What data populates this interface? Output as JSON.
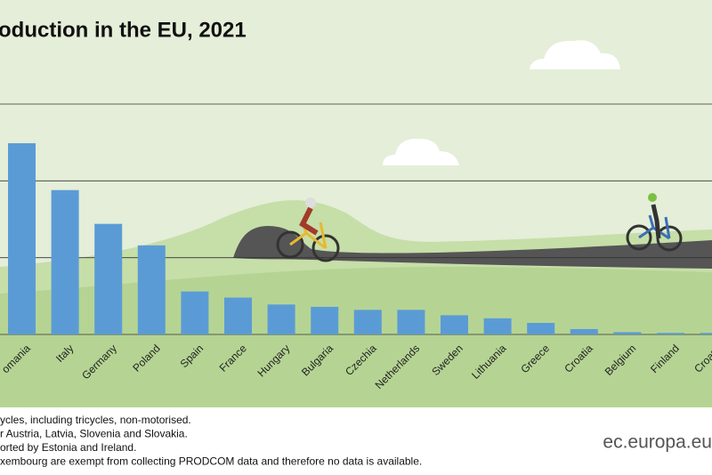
{
  "chart_data": {
    "type": "bar",
    "title": "oduction in the EU, 2021",
    "categories": [
      "omania",
      "Italy",
      "Germany",
      "Poland",
      "Spain",
      "France",
      "Hungary",
      "Bulgaria",
      "Czechia",
      "Netherlands",
      "Sweden",
      "Lithuania",
      "Greece",
      "Croatia",
      "Belgium",
      "Finland",
      "Croatia"
    ],
    "values": [
      2.49,
      1.88,
      1.44,
      1.16,
      0.56,
      0.48,
      0.39,
      0.36,
      0.32,
      0.32,
      0.25,
      0.21,
      0.15,
      0.07,
      0.03,
      0.02,
      0.02
    ],
    "color": "#5b9bd5",
    "ylim": [
      0,
      3
    ],
    "yticks": [
      0,
      1,
      2,
      3
    ],
    "grid": true,
    "notes": [
      "ycles, including tricycles, non-motorised.",
      "r Austria, Latvia, Slovenia and Slovakia.",
      "orted by Estonia and Ireland.",
      "xembourg are exempt from collecting PRODCOM data and therefore no data is available."
    ],
    "source": "ec.europa.eu"
  }
}
